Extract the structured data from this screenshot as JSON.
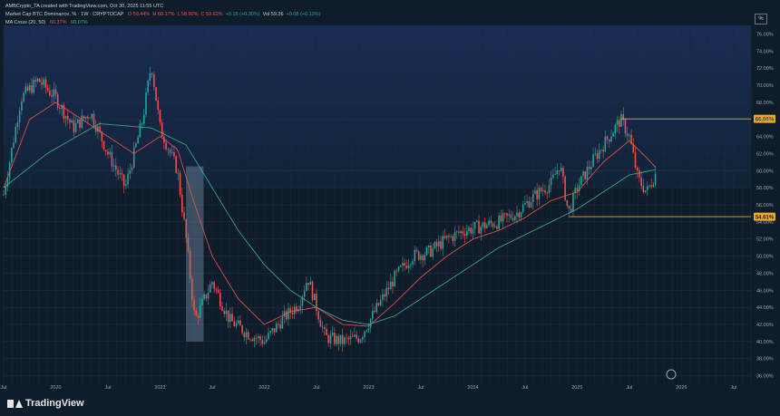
{
  "header": {
    "author_line": "AMBCrypto_TA created with TradingView.com, Oct 30, 2025 11:55 UTC",
    "symbol_line": "Market Cap BTC Dominance, % · 1W · CRYPTOCAP",
    "ohlc": [
      {
        "label": "O",
        "value": "59.44%"
      },
      {
        "label": "H",
        "value": "60.17%"
      },
      {
        "label": "L",
        "value": "58.90%"
      },
      {
        "label": "C",
        "value": "59.62%"
      },
      {
        "label": "",
        "value": "+0.18 (+0.30%)"
      },
      {
        "label": "Vol",
        "value": "59.26"
      },
      {
        "label": "",
        "value": "+0.08 (+0.13%)"
      }
    ],
    "indicator_name": "MA Cross (20, 50)",
    "indicator_values": [
      "60.37%",
      "60.07%"
    ],
    "colors": {
      "down": "#ef5350",
      "up": "#26a69a",
      "ma_fast": "#ef5350",
      "ma_slow": "#3fae8f"
    }
  },
  "scale_button": "%",
  "branding": {
    "logo_text": "TradingView",
    "logo_icon": "tradingview-logo-icon"
  },
  "chart_data": {
    "type": "candlestick",
    "title": "Market Cap BTC Dominance, % · 1W · CRYPTOCAP",
    "x_ticks": [
      "Jul",
      "2020",
      "Jul",
      "2021",
      "Jul",
      "2022",
      "Jul",
      "2023",
      "Jul",
      "2024",
      "Jul",
      "2025",
      "Jul",
      "2026",
      "Jul"
    ],
    "x_tick_dates": [
      "2019-07",
      "2020-01",
      "2020-07",
      "2021-01",
      "2021-07",
      "2022-01",
      "2022-07",
      "2023-01",
      "2023-07",
      "2024-01",
      "2024-07",
      "2025-01",
      "2025-07",
      "2026-01",
      "2026-07"
    ],
    "y_ticks": [
      "36.00%",
      "38.00%",
      "40.00%",
      "42.00%",
      "44.00%",
      "46.00%",
      "48.00%",
      "50.00%",
      "52.00%",
      "54.00%",
      "56.00%",
      "58.00%",
      "60.00%",
      "62.00%",
      "64.00%",
      "66.00%",
      "68.00%",
      "70.00%",
      "72.00%",
      "74.00%",
      "76.00%"
    ],
    "ylim": [
      35,
      77
    ],
    "xlim": [
      "2019-07",
      "2026-09"
    ],
    "price_path": [
      [
        "2019-07",
        57.2
      ],
      [
        "2019-09",
        68.5
      ],
      [
        "2019-11",
        70.6
      ],
      [
        "2020-01",
        68.5
      ],
      [
        "2020-03",
        65.0
      ],
      [
        "2020-05",
        66.8
      ],
      [
        "2020-07",
        62.0
      ],
      [
        "2020-09",
        58.0
      ],
      [
        "2020-11",
        66.0
      ],
      [
        "2020-12",
        72.5
      ],
      [
        "2021-01",
        65.0
      ],
      [
        "2021-03",
        60.0
      ],
      [
        "2021-04",
        52.0
      ],
      [
        "2021-05",
        42.5
      ],
      [
        "2021-07",
        47.0
      ],
      [
        "2021-09",
        42.5
      ],
      [
        "2021-11",
        41.0
      ],
      [
        "2022-01",
        40.0
      ],
      [
        "2022-03",
        42.5
      ],
      [
        "2022-05",
        44.5
      ],
      [
        "2022-06",
        47.5
      ],
      [
        "2022-08",
        40.5
      ],
      [
        "2022-10",
        40.0
      ],
      [
        "2022-12",
        40.5
      ],
      [
        "2023-02",
        44.0
      ],
      [
        "2023-04",
        47.5
      ],
      [
        "2023-06",
        50.0
      ],
      [
        "2023-08",
        50.5
      ],
      [
        "2023-10",
        52.0
      ],
      [
        "2023-12",
        53.0
      ],
      [
        "2024-02",
        53.5
      ],
      [
        "2024-04",
        54.0
      ],
      [
        "2024-06",
        55.0
      ],
      [
        "2024-08",
        57.0
      ],
      [
        "2024-10",
        58.5
      ],
      [
        "2024-11",
        60.8
      ],
      [
        "2024-12",
        55.0
      ],
      [
        "2025-01",
        58.0
      ],
      [
        "2025-03",
        61.5
      ],
      [
        "2025-05",
        64.5
      ],
      [
        "2025-06",
        66.0
      ],
      [
        "2025-07",
        64.0
      ],
      [
        "2025-08",
        59.0
      ],
      [
        "2025-09",
        57.5
      ],
      [
        "2025-10",
        59.6
      ]
    ],
    "ma20_path": [
      [
        "2019-07",
        58.0
      ],
      [
        "2019-10",
        66.0
      ],
      [
        "2020-01",
        68.0
      ],
      [
        "2020-04",
        66.0
      ],
      [
        "2020-07",
        64.0
      ],
      [
        "2020-10",
        62.0
      ],
      [
        "2021-01",
        64.0
      ],
      [
        "2021-03",
        62.5
      ],
      [
        "2021-05",
        56.0
      ],
      [
        "2021-07",
        50.0
      ],
      [
        "2021-10",
        45.0
      ],
      [
        "2022-01",
        42.0
      ],
      [
        "2022-04",
        43.5
      ],
      [
        "2022-07",
        44.0
      ],
      [
        "2022-10",
        42.0
      ],
      [
        "2023-01",
        41.8
      ],
      [
        "2023-04",
        44.5
      ],
      [
        "2023-07",
        47.5
      ],
      [
        "2023-10",
        50.0
      ],
      [
        "2024-01",
        52.0
      ],
      [
        "2024-04",
        53.0
      ],
      [
        "2024-07",
        54.5
      ],
      [
        "2024-10",
        56.5
      ],
      [
        "2025-01",
        57.5
      ],
      [
        "2025-04",
        61.0
      ],
      [
        "2025-07",
        63.5
      ],
      [
        "2025-09",
        61.5
      ],
      [
        "2025-10",
        60.4
      ]
    ],
    "ma50_path": [
      [
        "2019-07",
        58.0
      ],
      [
        "2019-12",
        62.0
      ],
      [
        "2020-06",
        65.5
      ],
      [
        "2020-12",
        65.0
      ],
      [
        "2021-04",
        63.0
      ],
      [
        "2021-07",
        58.0
      ],
      [
        "2021-10",
        53.0
      ],
      [
        "2022-01",
        49.0
      ],
      [
        "2022-04",
        46.0
      ],
      [
        "2022-07",
        44.0
      ],
      [
        "2022-10",
        42.5
      ],
      [
        "2023-01",
        42.0
      ],
      [
        "2023-04",
        43.0
      ],
      [
        "2023-07",
        45.0
      ],
      [
        "2023-10",
        47.0
      ],
      [
        "2024-01",
        49.0
      ],
      [
        "2024-04",
        51.0
      ],
      [
        "2024-07",
        52.5
      ],
      [
        "2024-10",
        54.0
      ],
      [
        "2025-01",
        55.5
      ],
      [
        "2025-04",
        57.5
      ],
      [
        "2025-07",
        59.5
      ],
      [
        "2025-10",
        60.1
      ]
    ],
    "annotations": [
      {
        "type": "horizontal-level",
        "label": "66.06%",
        "value": 66.06,
        "from": "2025-06",
        "color": "#f5a623"
      },
      {
        "type": "horizontal-level",
        "label": "54.61%",
        "value": 54.61,
        "from": "2024-12",
        "color": "#f5a623"
      },
      {
        "type": "highlight-zone",
        "from": "2021-04",
        "to": "2021-06",
        "ylim": [
          40,
          60.5
        ],
        "color": "#8fa8c8"
      }
    ],
    "grid": true,
    "legend": "top-left"
  }
}
